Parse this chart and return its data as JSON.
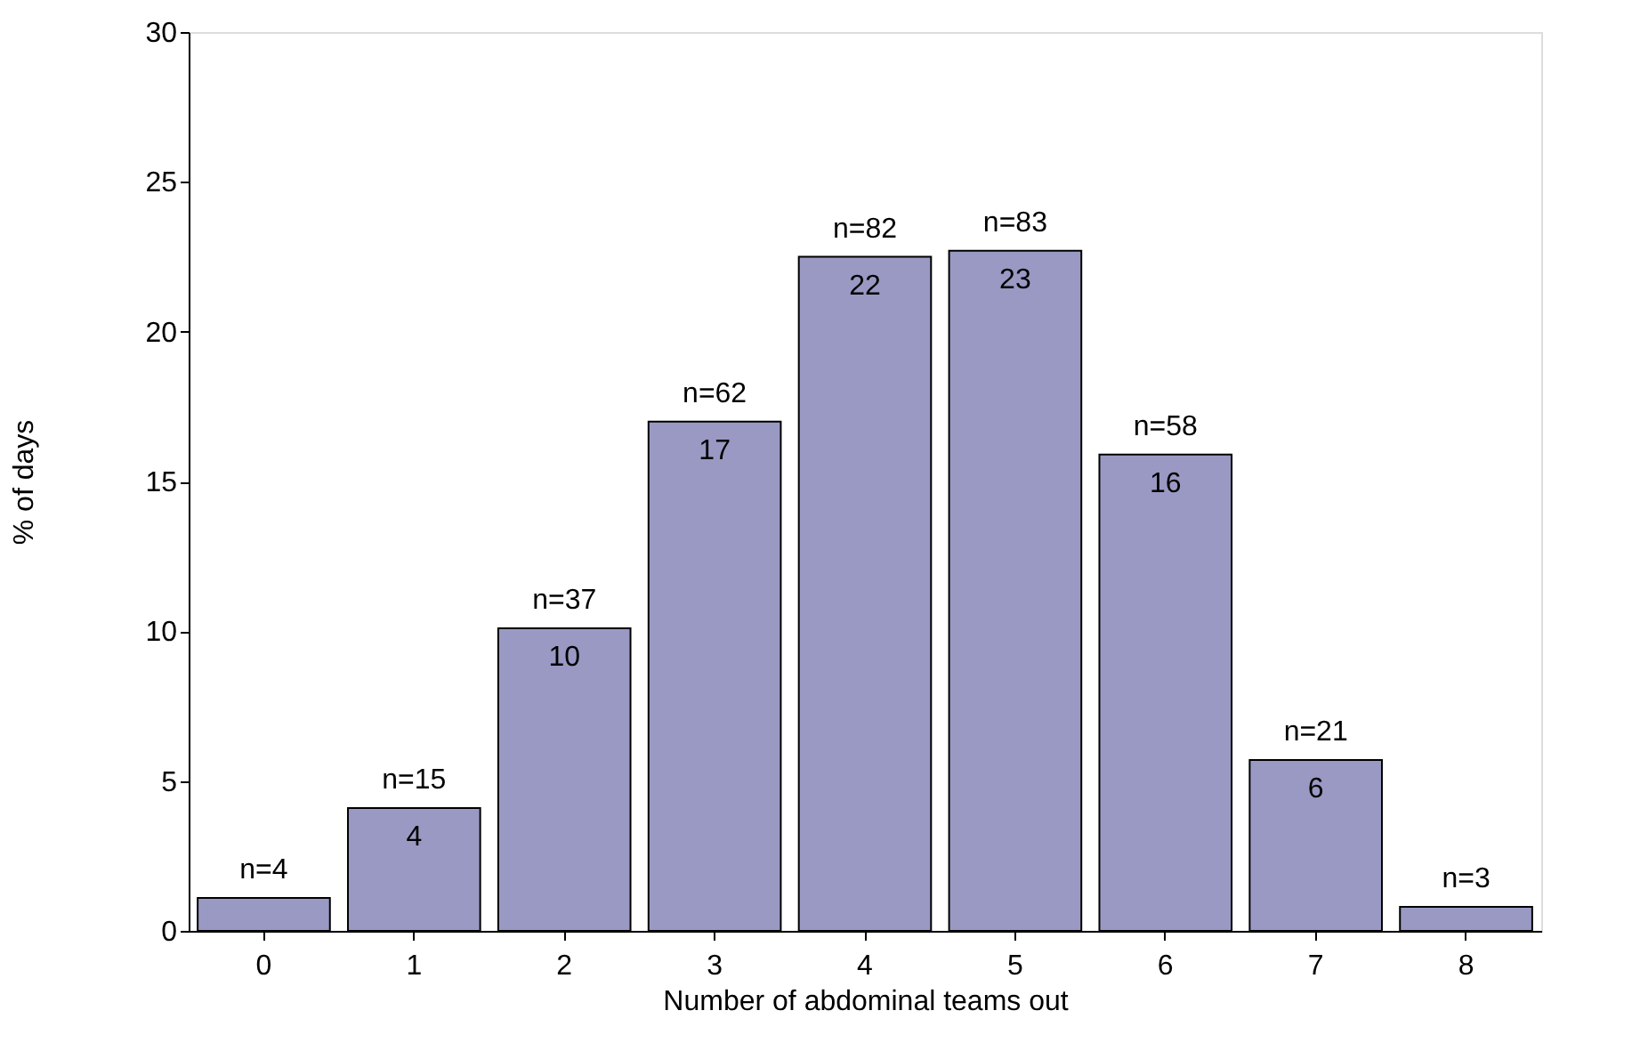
{
  "chart_data": {
    "type": "bar",
    "xlabel": "Number of abdominal teams out",
    "ylabel": "% of days",
    "categories": [
      "0",
      "1",
      "2",
      "3",
      "4",
      "5",
      "6",
      "7",
      "8"
    ],
    "values": [
      1.1,
      4.1,
      10.1,
      17.0,
      22.5,
      22.7,
      15.9,
      5.7,
      0.8
    ],
    "value_labels": [
      null,
      "4",
      "10",
      "17",
      "22",
      "23",
      "16",
      "6",
      null
    ],
    "color": "#9999c3",
    "annotations": [
      {
        "text": "n=4",
        "x": "0",
        "y": 1.1
      },
      {
        "text": "n=15",
        "x": "1",
        "y": 4.1
      },
      {
        "text": "n=37",
        "x": "2",
        "y": 10.1
      },
      {
        "text": "n=62",
        "x": "3",
        "y": 17.0
      },
      {
        "text": "n=82",
        "x": "4",
        "y": 22.5
      },
      {
        "text": "n=83",
        "x": "5",
        "y": 22.7
      },
      {
        "text": "n=58",
        "x": "6",
        "y": 15.9
      },
      {
        "text": "n=21",
        "x": "7",
        "y": 5.7
      },
      {
        "text": "n=3",
        "x": "8",
        "y": 0.8
      }
    ],
    "ylim": [
      0,
      30
    ],
    "yticks": [
      0,
      5,
      10,
      15,
      20,
      25,
      30
    ],
    "grid": false
  }
}
